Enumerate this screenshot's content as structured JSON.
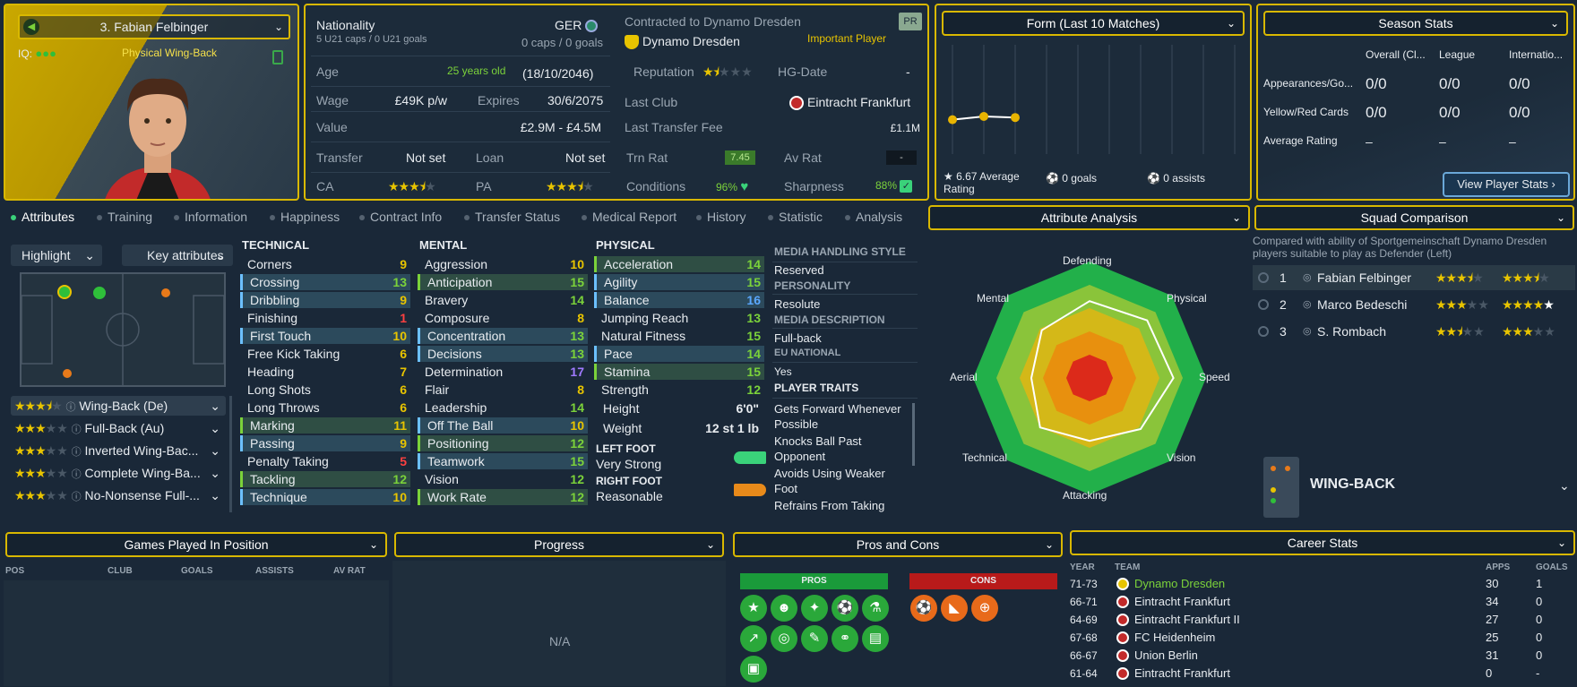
{
  "header": {
    "player_name": "3. Fabian Felbinger",
    "iq_label": "IQ:",
    "role": "Physical Wing-Back"
  },
  "info": {
    "nationality_label": "Nationality",
    "nationality_value": "GER",
    "u21_caps": "5 U21 caps / 0 U21 goals",
    "caps": "0 caps / 0 goals",
    "contract_label": "Contracted to Dynamo Dresden",
    "club": "Dynamo Dresden",
    "status": "Important Player",
    "pr_badge": "PR",
    "age_label": "Age",
    "age_value": "25 years old",
    "dob": "(18/10/2046)",
    "reputation_label": "Reputation",
    "hg_label": "HG-Date",
    "hg_value": "-",
    "wage_label": "Wage",
    "wage_value": "£49K p/w",
    "expires_label": "Expires",
    "expires_value": "30/6/2075",
    "last_club_label": "Last Club",
    "last_club_value": "Eintracht Frankfurt",
    "value_label": "Value",
    "value_value": "£2.9M - £4.5M",
    "last_fee_label": "Last Transfer Fee",
    "last_fee_value": "£1.1M",
    "transfer_label": "Transfer",
    "transfer_value": "Not set",
    "loan_label": "Loan",
    "loan_value": "Not set",
    "trn_label": "Trn Rat",
    "trn_value": "7.45",
    "avrat_label": "Av Rat",
    "avrat_value": "-",
    "ca_label": "CA",
    "pa_label": "PA",
    "cond_label": "Conditions",
    "cond_value": "96%",
    "sharp_label": "Sharpness",
    "sharp_value": "88%"
  },
  "form": {
    "title": "Form (Last 10 Matches)",
    "avg": "6.67 Average Rating",
    "goals": "0 goals",
    "assists": "0 assists",
    "ratings": [
      6.6,
      6.75,
      6.7
    ]
  },
  "season": {
    "title": "Season Stats",
    "cols": [
      "Overall (Cl...",
      "League",
      "Internatio..."
    ],
    "rows": [
      {
        "label": "Appearances/Go...",
        "vals": [
          "0/0",
          "0/0",
          "0/0"
        ]
      },
      {
        "label": "Yellow/Red Cards",
        "vals": [
          "0/0",
          "0/0",
          "0/0"
        ]
      },
      {
        "label": "Average Rating",
        "vals": [
          "–",
          "–",
          "–"
        ]
      }
    ],
    "button": "View Player Stats"
  },
  "tabs": [
    "Attributes",
    "Training",
    "Information",
    "Happiness",
    "Contract Info",
    "Transfer Status",
    "Medical Report",
    "History",
    "Statistic",
    "Analysis"
  ],
  "left": {
    "highlight": "Highlight",
    "key_attr": "Key attributes",
    "positions": [
      {
        "label": "Wing-Back (De)",
        "stars": 3.5
      },
      {
        "label": "Full-Back (Au)",
        "stars": 3
      },
      {
        "label": "Inverted Wing-Bac...",
        "stars": 3
      },
      {
        "label": "Complete Wing-Ba...",
        "stars": 3
      },
      {
        "label": "No-Nonsense Full-...",
        "stars": 3
      }
    ]
  },
  "technical": {
    "title": "TECHNICAL",
    "items": [
      {
        "n": "Corners",
        "v": "9",
        "c": "gold",
        "h": ""
      },
      {
        "n": "Crossing",
        "v": "13",
        "c": "green",
        "h": "hl"
      },
      {
        "n": "Dribbling",
        "v": "9",
        "c": "gold",
        "h": "hl"
      },
      {
        "n": "Finishing",
        "v": "1",
        "c": "red",
        "h": ""
      },
      {
        "n": "First Touch",
        "v": "10",
        "c": "gold",
        "h": "hl"
      },
      {
        "n": "Free Kick Taking",
        "v": "6",
        "c": "gold",
        "h": ""
      },
      {
        "n": "Heading",
        "v": "7",
        "c": "gold",
        "h": ""
      },
      {
        "n": "Long Shots",
        "v": "6",
        "c": "gold",
        "h": ""
      },
      {
        "n": "Long Throws",
        "v": "6",
        "c": "gold",
        "h": ""
      },
      {
        "n": "Marking",
        "v": "11",
        "c": "gold",
        "h": "hl2"
      },
      {
        "n": "Passing",
        "v": "9",
        "c": "gold",
        "h": "hl"
      },
      {
        "n": "Penalty Taking",
        "v": "5",
        "c": "red",
        "h": ""
      },
      {
        "n": "Tackling",
        "v": "12",
        "c": "green",
        "h": "hl2"
      },
      {
        "n": "Technique",
        "v": "10",
        "c": "gold",
        "h": "hl"
      }
    ]
  },
  "mental": {
    "title": "MENTAL",
    "items": [
      {
        "n": "Aggression",
        "v": "10",
        "c": "gold",
        "h": ""
      },
      {
        "n": "Anticipation",
        "v": "15",
        "c": "green",
        "h": "hl2"
      },
      {
        "n": "Bravery",
        "v": "14",
        "c": "green",
        "h": ""
      },
      {
        "n": "Composure",
        "v": "8",
        "c": "gold",
        "h": ""
      },
      {
        "n": "Concentration",
        "v": "13",
        "c": "green",
        "h": "hl"
      },
      {
        "n": "Decisions",
        "v": "13",
        "c": "green",
        "h": "hl"
      },
      {
        "n": "Determination",
        "v": "17",
        "c": "purple",
        "h": ""
      },
      {
        "n": "Flair",
        "v": "8",
        "c": "gold",
        "h": ""
      },
      {
        "n": "Leadership",
        "v": "14",
        "c": "green",
        "h": ""
      },
      {
        "n": "Off The Ball",
        "v": "10",
        "c": "gold",
        "h": "hl"
      },
      {
        "n": "Positioning",
        "v": "12",
        "c": "green",
        "h": "hl2"
      },
      {
        "n": "Teamwork",
        "v": "15",
        "c": "green",
        "h": "hl"
      },
      {
        "n": "Vision",
        "v": "12",
        "c": "green",
        "h": ""
      },
      {
        "n": "Work Rate",
        "v": "12",
        "c": "green",
        "h": "hl2"
      }
    ]
  },
  "physical": {
    "title": "PHYSICAL",
    "items": [
      {
        "n": "Acceleration",
        "v": "14",
        "c": "green",
        "h": "hl2"
      },
      {
        "n": "Agility",
        "v": "15",
        "c": "green",
        "h": "hl"
      },
      {
        "n": "Balance",
        "v": "16",
        "c": "blue",
        "h": "hl"
      },
      {
        "n": "Jumping Reach",
        "v": "13",
        "c": "green",
        "h": ""
      },
      {
        "n": "Natural Fitness",
        "v": "15",
        "c": "green",
        "h": ""
      },
      {
        "n": "Pace",
        "v": "14",
        "c": "green",
        "h": "hl"
      },
      {
        "n": "Stamina",
        "v": "15",
        "c": "green",
        "h": "hl2"
      },
      {
        "n": "Strength",
        "v": "12",
        "c": "green",
        "h": ""
      }
    ],
    "height_label": "Height",
    "height_value": "6'0\"",
    "weight_label": "Weight",
    "weight_value": "12 st 1 lb",
    "left_foot_label": "LEFT FOOT",
    "left_foot_value": "Very Strong",
    "right_foot_label": "RIGHT FOOT",
    "right_foot_value": "Reasonable"
  },
  "media": {
    "style_label": "MEDIA HANDLING STYLE",
    "style_value": "Reserved",
    "personality_label": "PERSONALITY",
    "personality_value": "Resolute",
    "desc_label": "MEDIA DESCRIPTION",
    "desc_value": "Full-back",
    "eu_label": "EU NATIONAL",
    "eu_value": "Yes",
    "traits_label": "PLAYER TRAITS",
    "traits": [
      "Gets Forward Whenever Possible",
      "Knocks Ball Past Opponent",
      "Avoids Using Weaker Foot",
      "Refrains From Taking"
    ]
  },
  "analysis": {
    "title": "Attribute Analysis",
    "labels": [
      "Defending",
      "Physical",
      "Speed",
      "Vision",
      "Attacking",
      "Technical",
      "Aerial",
      "Mental"
    ]
  },
  "squad": {
    "title": "Squad Comparison",
    "desc": "Compared with ability of Sportgemeinschaft Dynamo Dresden players suitable to play as Defender (Left)",
    "rows": [
      {
        "rank": "1",
        "name": "Fabian Felbinger",
        "ca": 3.5,
        "pa": 3.5
      },
      {
        "rank": "2",
        "name": "Marco Bedeschi",
        "ca": 3,
        "pa": 5
      },
      {
        "rank": "3",
        "name": "S. Rombach",
        "ca": 2.5,
        "pa": 3
      }
    ],
    "position": "WING-BACK"
  },
  "bottom": {
    "games_title": "Games Played In Position",
    "games_cols": [
      "POS",
      "CLUB",
      "GOALS",
      "ASSISTS",
      "AV RAT"
    ],
    "progress_title": "Progress",
    "progress_na": "N/A",
    "pros_title": "Pros and Cons",
    "pros_label": "PROS",
    "cons_label": "CONS",
    "career_title": "Career Stats",
    "career_cols": [
      "YEAR",
      "TEAM",
      "APPS",
      "GOALS"
    ],
    "career_rows": [
      {
        "year": "71-73",
        "team": "Dynamo Dresden",
        "apps": "30",
        "goals": "1",
        "hl": true
      },
      {
        "year": "66-71",
        "team": "Eintracht Frankfurt",
        "apps": "34",
        "goals": "0",
        "hl": false
      },
      {
        "year": "64-69",
        "team": "Eintracht Frankfurt II",
        "apps": "27",
        "goals": "0",
        "hl": false
      },
      {
        "year": "67-68",
        "team": "FC Heidenheim",
        "apps": "25",
        "goals": "0",
        "hl": false
      },
      {
        "year": "66-67",
        "team": "Union Berlin",
        "apps": "31",
        "goals": "0",
        "hl": false
      },
      {
        "year": "61-64",
        "team": "Eintracht Frankfurt",
        "apps": "0",
        "goals": "-",
        "hl": false
      }
    ]
  },
  "colors": {
    "accent": "#d9b800",
    "green": "#7bd23a",
    "red": "#ff4040",
    "background": "#1a2838"
  }
}
